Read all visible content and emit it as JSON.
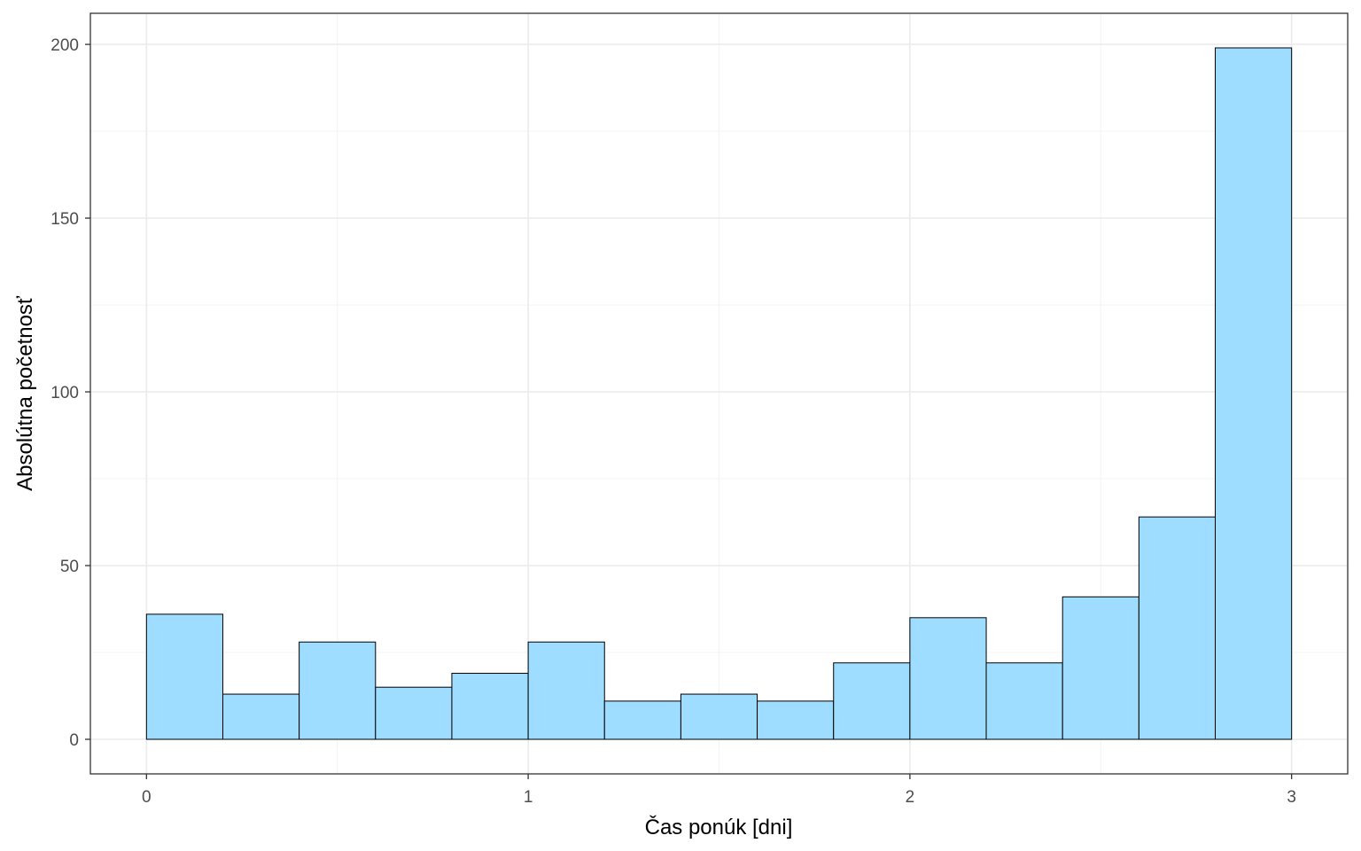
{
  "chart_data": {
    "type": "bar",
    "subtype": "histogram",
    "xlabel": "Čas ponúk [dni]",
    "ylabel": "Absolútna početnosť",
    "xlim": [
      -0.147,
      3.147
    ],
    "ylim": [
      -9.95,
      208.95
    ],
    "x_ticks": [
      0,
      1,
      2,
      3
    ],
    "x_tick_labels": [
      "0",
      "1",
      "2",
      "3"
    ],
    "y_ticks": [
      0,
      50,
      100,
      150,
      200
    ],
    "y_tick_labels": [
      "0",
      "50",
      "100",
      "150",
      "200"
    ],
    "x_minor_grid": [
      0.5,
      1.5,
      2.5
    ],
    "y_minor_grid": [
      25,
      75,
      125,
      175
    ],
    "grid": true,
    "legend": "none",
    "bin_width": 0.2,
    "bins": [
      {
        "x0": 0.0,
        "x1": 0.2,
        "count": 36
      },
      {
        "x0": 0.2,
        "x1": 0.4,
        "count": 13
      },
      {
        "x0": 0.4,
        "x1": 0.6,
        "count": 28
      },
      {
        "x0": 0.6,
        "x1": 0.8,
        "count": 15
      },
      {
        "x0": 0.8,
        "x1": 1.0,
        "count": 19
      },
      {
        "x0": 1.0,
        "x1": 1.2,
        "count": 28
      },
      {
        "x0": 1.2,
        "x1": 1.4,
        "count": 11
      },
      {
        "x0": 1.4,
        "x1": 1.6,
        "count": 13
      },
      {
        "x0": 1.6,
        "x1": 1.8,
        "count": 11
      },
      {
        "x0": 1.8,
        "x1": 2.0,
        "count": 22
      },
      {
        "x0": 2.0,
        "x1": 2.2,
        "count": 35
      },
      {
        "x0": 2.2,
        "x1": 2.4,
        "count": 22
      },
      {
        "x0": 2.4,
        "x1": 2.6,
        "count": 41
      },
      {
        "x0": 2.6,
        "x1": 2.8,
        "count": 64
      },
      {
        "x0": 2.8,
        "x1": 3.0,
        "count": 199
      }
    ],
    "colors": {
      "bar_fill": "#9EDDFF",
      "bar_stroke": "#000000",
      "grid_major": "#EBEBEB",
      "grid_minor": "#F4F4F4",
      "panel_border": "#333333",
      "tick_text": "#4D4D4D",
      "title_text": "#000000"
    }
  }
}
